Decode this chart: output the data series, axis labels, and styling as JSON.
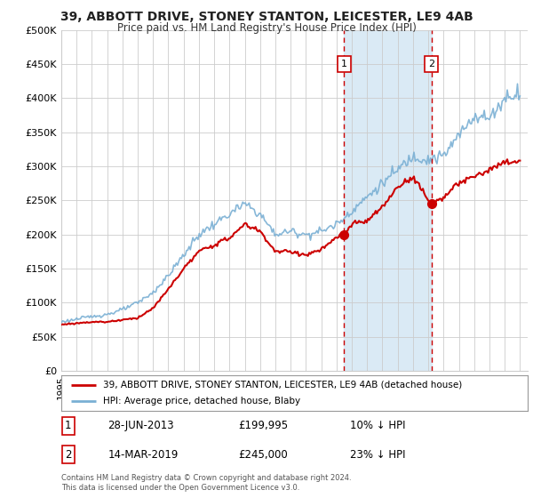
{
  "title": "39, ABBOTT DRIVE, STONEY STANTON, LEICESTER, LE9 4AB",
  "subtitle": "Price paid vs. HM Land Registry's House Price Index (HPI)",
  "yticks": [
    0,
    50000,
    100000,
    150000,
    200000,
    250000,
    300000,
    350000,
    400000,
    450000,
    500000
  ],
  "ytick_labels": [
    "£0",
    "£50K",
    "£100K",
    "£150K",
    "£200K",
    "£250K",
    "£300K",
    "£350K",
    "£400K",
    "£450K",
    "£500K"
  ],
  "xmin": 1995.0,
  "xmax": 2025.5,
  "ymin": 0,
  "ymax": 500000,
  "sale1_x": 2013.49,
  "sale1_y": 199995,
  "sale2_x": 2019.2,
  "sale2_y": 245000,
  "sale1_label": "28-JUN-2013",
  "sale1_price": "£199,995",
  "sale1_hpi": "10% ↓ HPI",
  "sale2_label": "14-MAR-2019",
  "sale2_price": "£245,000",
  "sale2_hpi": "23% ↓ HPI",
  "legend_line1": "39, ABBOTT DRIVE, STONEY STANTON, LEICESTER, LE9 4AB (detached house)",
  "legend_line2": "HPI: Average price, detached house, Blaby",
  "footer": "Contains HM Land Registry data © Crown copyright and database right 2024.\nThis data is licensed under the Open Government Licence v3.0.",
  "red_color": "#cc0000",
  "blue_color": "#7ab0d4",
  "shade_color": "#daeaf5",
  "grid_color": "#cccccc",
  "bg_color": "#ffffff",
  "hpi_x": [
    1995,
    1996,
    1997,
    1998,
    1999,
    2000,
    2001,
    2002,
    2003,
    2004,
    2005,
    2006,
    2007,
    2008,
    2009,
    2010,
    2011,
    2012,
    2013,
    2014,
    2015,
    2016,
    2017,
    2018,
    2019,
    2020,
    2021,
    2022,
    2023,
    2024,
    2025
  ],
  "hpi_y": [
    72000,
    76000,
    80000,
    83000,
    90000,
    100000,
    115000,
    140000,
    170000,
    200000,
    215000,
    230000,
    245000,
    230000,
    200000,
    205000,
    200000,
    205000,
    215000,
    235000,
    255000,
    275000,
    295000,
    315000,
    310000,
    315000,
    345000,
    375000,
    370000,
    400000,
    410000
  ],
  "red_x": [
    1995,
    1996,
    1997,
    1998,
    1999,
    2000,
    2001,
    2002,
    2003,
    2004,
    2005,
    2006,
    2007,
    2008,
    2009,
    2010,
    2011,
    2012,
    2013,
    2013.49,
    2014,
    2015,
    2016,
    2017,
    2018,
    2019.2,
    2020,
    2021,
    2022,
    2023,
    2024,
    2025
  ],
  "red_y": [
    68000,
    70000,
    72000,
    72000,
    75000,
    78000,
    92000,
    120000,
    150000,
    175000,
    185000,
    195000,
    215000,
    205000,
    175000,
    175000,
    170000,
    178000,
    195000,
    199995,
    215000,
    220000,
    240000,
    270000,
    285000,
    245000,
    255000,
    275000,
    285000,
    295000,
    305000,
    308000
  ]
}
